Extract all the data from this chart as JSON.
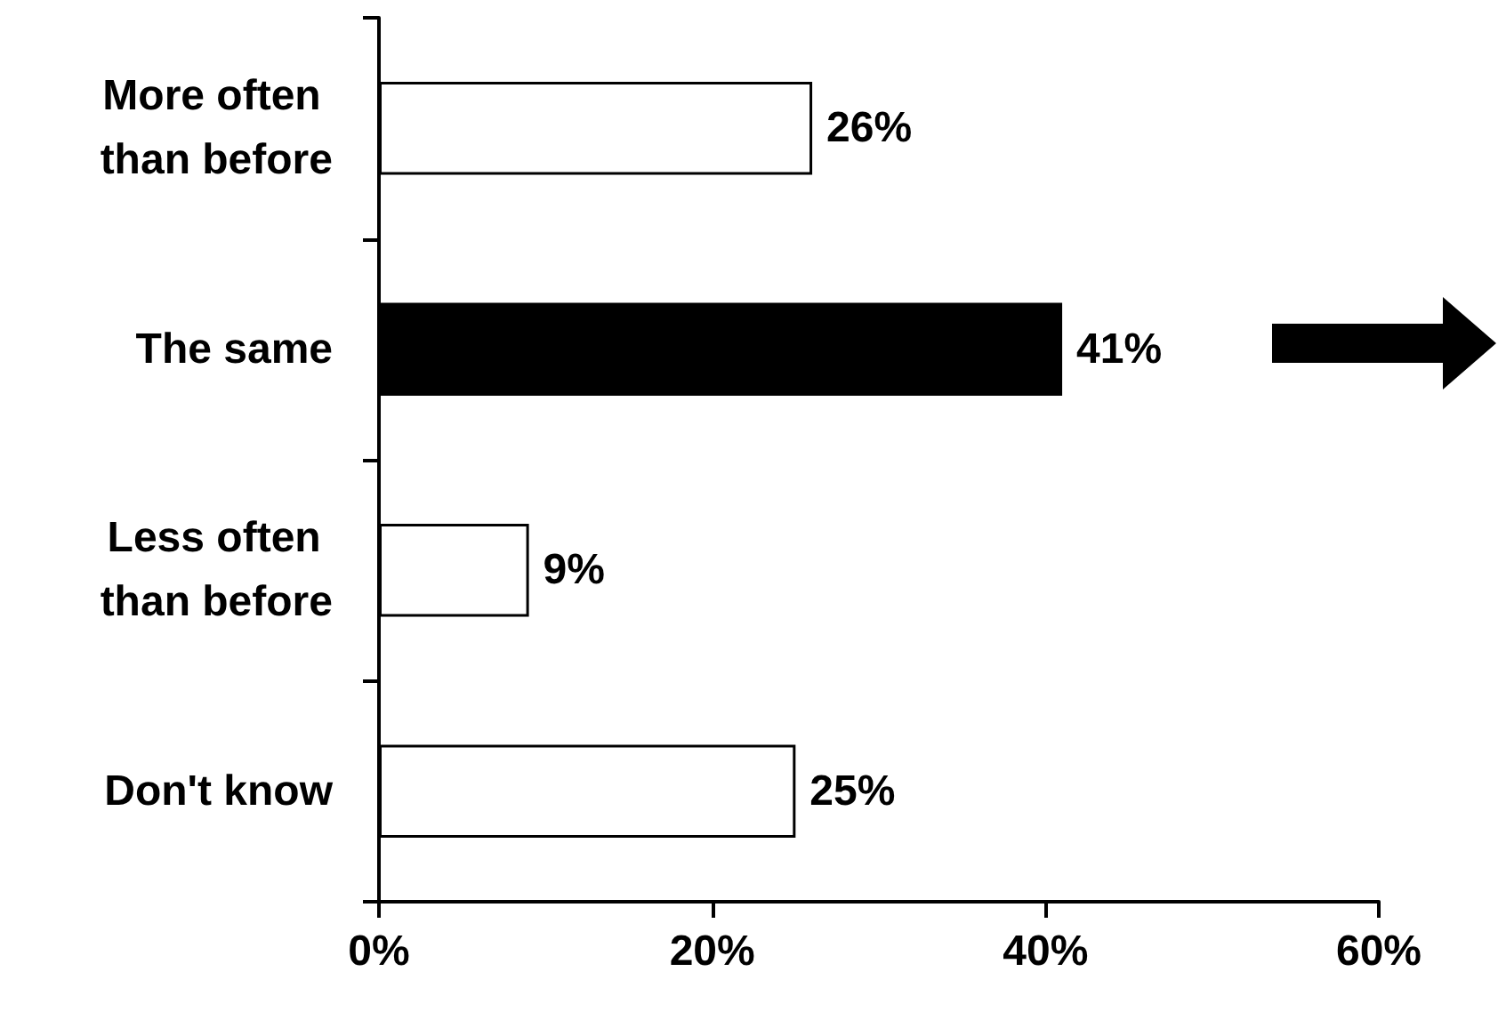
{
  "chart_data": {
    "type": "bar",
    "orientation": "horizontal",
    "categories": [
      "More often than before",
      "The same",
      "Less often than before",
      "Don't know"
    ],
    "values": [
      26,
      41,
      9,
      25
    ],
    "colors": [
      "#ffffff",
      "#000000",
      "#ffffff",
      "#ffffff"
    ],
    "value_labels": [
      "26%",
      "41%",
      "9%",
      "25%"
    ],
    "xlim": [
      0,
      60
    ],
    "xticks": [
      {
        "value": 0,
        "label": "0%"
      },
      {
        "value": 20,
        "label": "20%"
      },
      {
        "value": 40,
        "label": "40%"
      },
      {
        "value": 60,
        "label": "60%"
      }
    ]
  }
}
